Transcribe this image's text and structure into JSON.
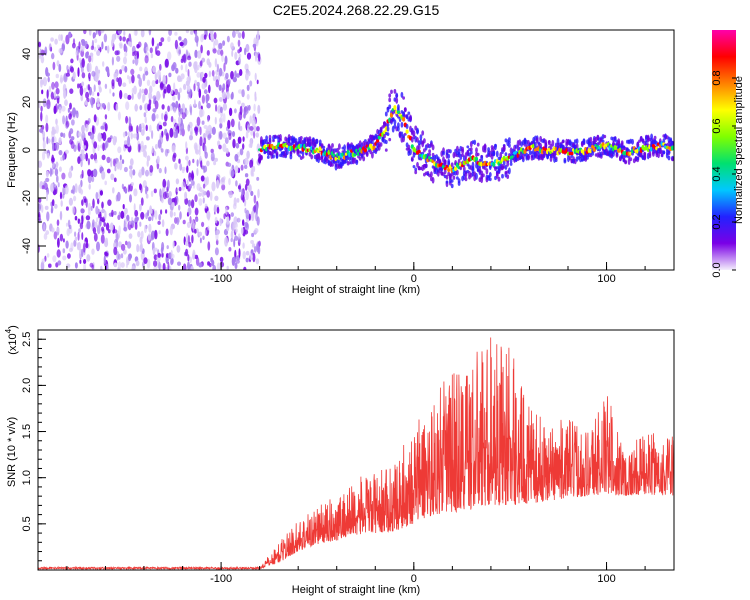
{
  "title": "C2E5.2024.268.22.29.G15",
  "chart_data": [
    {
      "type": "heatmap",
      "xlabel": "Height of straight line (km)",
      "ylabel": "Frequency (Hz)",
      "xlim": [
        -195,
        135
      ],
      "ylim": [
        -50,
        50
      ],
      "xticks": [
        -100,
        0,
        100
      ],
      "yticks": [
        -40,
        -20,
        0,
        20,
        40
      ],
      "colorbar": {
        "label": "Normalized spectral amplitude",
        "range": [
          0,
          1
        ],
        "ticks": [
          0.0,
          0.2,
          0.4,
          0.6,
          0.8
        ],
        "colormap": [
          "#f4eefc",
          "#7a00e6",
          "#2222ff",
          "#00c8ff",
          "#00e070",
          "#80ff00",
          "#ffff00",
          "#ff8000",
          "#ff0000",
          "#ff00aa"
        ]
      },
      "noise_region_x": [
        -195,
        -80
      ],
      "ridge": {
        "x": [
          -80,
          -70,
          -60,
          -50,
          -40,
          -30,
          -20,
          -15,
          -10,
          -5,
          0,
          10,
          20,
          30,
          40,
          50,
          60,
          70,
          80,
          90,
          100,
          110,
          120,
          130,
          135
        ],
        "freq": [
          0,
          2,
          1,
          0,
          -3,
          -1,
          2,
          8,
          18,
          12,
          0,
          -5,
          -8,
          -4,
          -6,
          -3,
          1,
          0,
          -1,
          0,
          2,
          -1,
          1,
          2,
          0
        ]
      }
    },
    {
      "type": "line",
      "xlabel": "Height of straight line (km)",
      "ylabel": "SNR (10 * v/v)",
      "y_multiplier": "(x10",
      "y_multiplier_exp": "4",
      "y_multiplier_close": ")",
      "xlim": [
        -195,
        135
      ],
      "ylim": [
        0,
        2.6
      ],
      "xticks": [
        -100,
        0,
        100
      ],
      "yticks": [
        0.5,
        1.0,
        1.5,
        2.0,
        2.5
      ],
      "color": "#ee3a36",
      "envelope": {
        "x": [
          -195,
          -80,
          -70,
          -60,
          -50,
          -40,
          -30,
          -20,
          -10,
          0,
          10,
          20,
          30,
          40,
          50,
          60,
          70,
          80,
          90,
          100,
          110,
          120,
          135
        ],
        "base": [
          0.01,
          0.01,
          0.08,
          0.2,
          0.28,
          0.32,
          0.38,
          0.4,
          0.42,
          0.5,
          0.6,
          0.62,
          0.65,
          0.7,
          0.7,
          0.72,
          0.75,
          0.78,
          0.8,
          0.82,
          0.8,
          0.82,
          0.8
        ],
        "peak": [
          0.03,
          0.03,
          0.3,
          0.55,
          0.7,
          0.8,
          1.0,
          1.05,
          1.15,
          1.6,
          1.85,
          2.2,
          2.3,
          2.6,
          2.45,
          1.75,
          1.6,
          1.65,
          1.55,
          1.95,
          1.3,
          1.5,
          1.45
        ]
      }
    }
  ]
}
